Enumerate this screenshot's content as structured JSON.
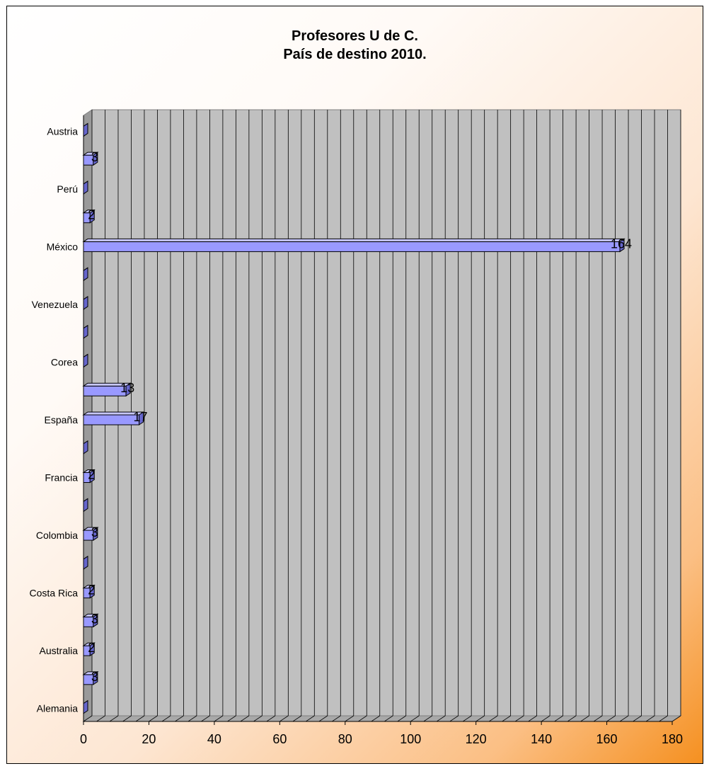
{
  "chart_data": {
    "type": "bar",
    "orientation": "horizontal",
    "title": [
      "Profesores U de C.",
      "País de destino 2010."
    ],
    "categories": [
      "Alemania",
      "",
      "Australia",
      "",
      "Costa Rica",
      "",
      "Colombia",
      "",
      "Francia",
      "",
      "España",
      "",
      "Corea",
      "",
      "Venezuela",
      "",
      "México",
      "",
      "Perú",
      "",
      "Austria"
    ],
    "values": [
      0,
      3,
      2,
      3,
      2,
      0,
      3,
      0,
      2,
      0,
      17,
      13,
      0,
      0,
      0,
      0,
      164,
      2,
      0,
      3,
      0
    ],
    "data_labels": [
      "",
      "3",
      "2",
      "3",
      "2",
      "",
      "3",
      "",
      "2",
      "",
      "17",
      "13",
      "",
      "",
      "",
      "",
      "164",
      "2",
      "",
      "3",
      ""
    ],
    "x_ticks": [
      "0",
      "20",
      "40",
      "60",
      "80",
      "100",
      "120",
      "140",
      "160",
      "180"
    ],
    "xlim": [
      0,
      180
    ],
    "grid": true,
    "gridline_step": 4,
    "style": "3d",
    "colors": {
      "bar_face": "#9999ff",
      "bar_top": "#c8c8ff",
      "bar_side": "#6666cc",
      "wall": "#c0c0c0",
      "floor": "#a8a8a8",
      "grid": "#000000"
    }
  }
}
